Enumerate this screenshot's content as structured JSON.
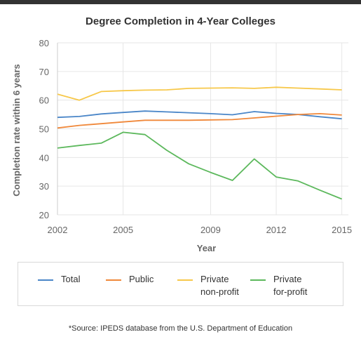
{
  "chart_data": {
    "type": "line",
    "title": "Degree Completion in 4-Year Colleges",
    "xlabel": "Year",
    "ylabel": "Completion rate within 6 years",
    "xlim": [
      2002,
      2015.3
    ],
    "ylim": [
      20,
      80
    ],
    "x_ticks": [
      2002,
      2005,
      2009,
      2012,
      2015
    ],
    "y_ticks": [
      20,
      30,
      40,
      50,
      60,
      70,
      80
    ],
    "grid": true,
    "legend": "bottom",
    "series": [
      {
        "name": "Total",
        "color": "#4a86c8",
        "x": [
          2002,
          2003,
          2004,
          2005,
          2006,
          2007,
          2008,
          2009,
          2010,
          2011,
          2012,
          2013,
          2014,
          2015
        ],
        "values": [
          54.0,
          54.3,
          55.2,
          55.7,
          56.2,
          55.9,
          55.6,
          55.3,
          54.9,
          56.0,
          55.4,
          55.0,
          54.2,
          53.5
        ]
      },
      {
        "name": "Public",
        "color": "#f0883a",
        "x": [
          2002,
          2003,
          2004,
          2005,
          2006,
          2007,
          2008,
          2009,
          2010,
          2011,
          2012,
          2013,
          2014,
          2015
        ],
        "values": [
          50.3,
          51.2,
          51.8,
          52.4,
          53.0,
          53.0,
          53.0,
          53.1,
          53.2,
          53.8,
          54.4,
          55.0,
          55.3,
          54.8
        ]
      },
      {
        "name": "Private\nnon-profit",
        "color": "#f7c84a",
        "x": [
          2002,
          2003,
          2004,
          2005,
          2006,
          2007,
          2008,
          2009,
          2010,
          2011,
          2012,
          2013,
          2014,
          2015
        ],
        "values": [
          62.1,
          60.0,
          63.0,
          63.3,
          63.5,
          63.6,
          64.1,
          64.2,
          64.3,
          64.1,
          64.5,
          64.2,
          63.9,
          63.6
        ]
      },
      {
        "name": "Private\nfor-profit",
        "color": "#5cb85c",
        "x": [
          2002,
          2003,
          2004,
          2005,
          2006,
          2007,
          2008,
          2009,
          2010,
          2011,
          2012,
          2013,
          2014,
          2015
        ],
        "values": [
          43.3,
          44.2,
          45.0,
          48.8,
          48.0,
          42.5,
          37.8,
          34.8,
          32.0,
          39.5,
          33.2,
          31.8,
          28.6,
          25.5
        ]
      }
    ]
  },
  "footnote": "*Source: IPEDS database from the U.S. Department of Education"
}
